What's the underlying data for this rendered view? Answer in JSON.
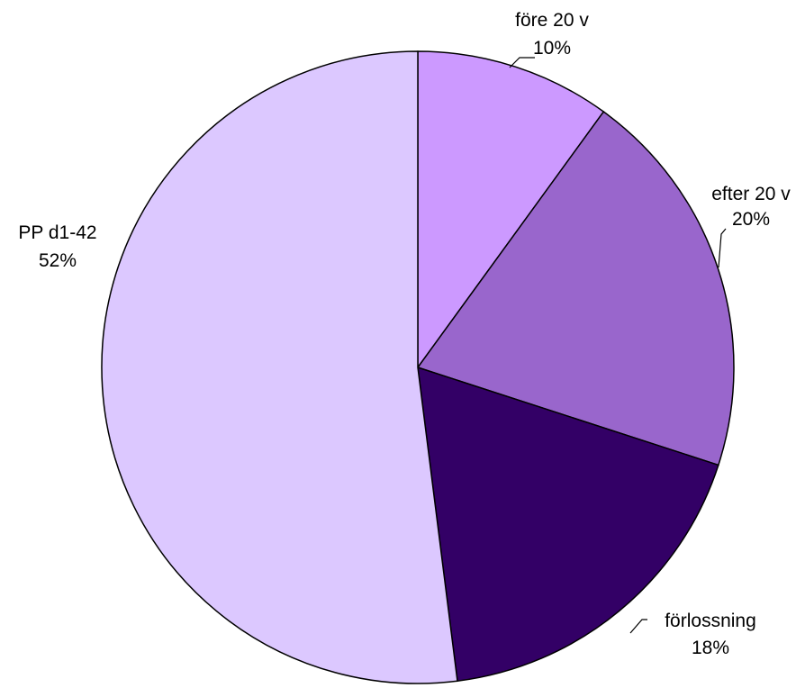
{
  "chart_data": {
    "type": "pie",
    "slices": [
      {
        "label": "före 20 v",
        "value": 10,
        "percent_label": "10%",
        "color": "#cc99ff"
      },
      {
        "label": "efter 20 v",
        "value": 20,
        "percent_label": "20%",
        "color": "#9966cc"
      },
      {
        "label": "förlossning",
        "value": 18,
        "percent_label": "18%",
        "color": "#330066"
      },
      {
        "label": "PP d1-42",
        "value": 52,
        "percent_label": "52%",
        "color": "#dcc8ff"
      }
    ],
    "start": "top",
    "direction": "clockwise",
    "legend": "none"
  }
}
